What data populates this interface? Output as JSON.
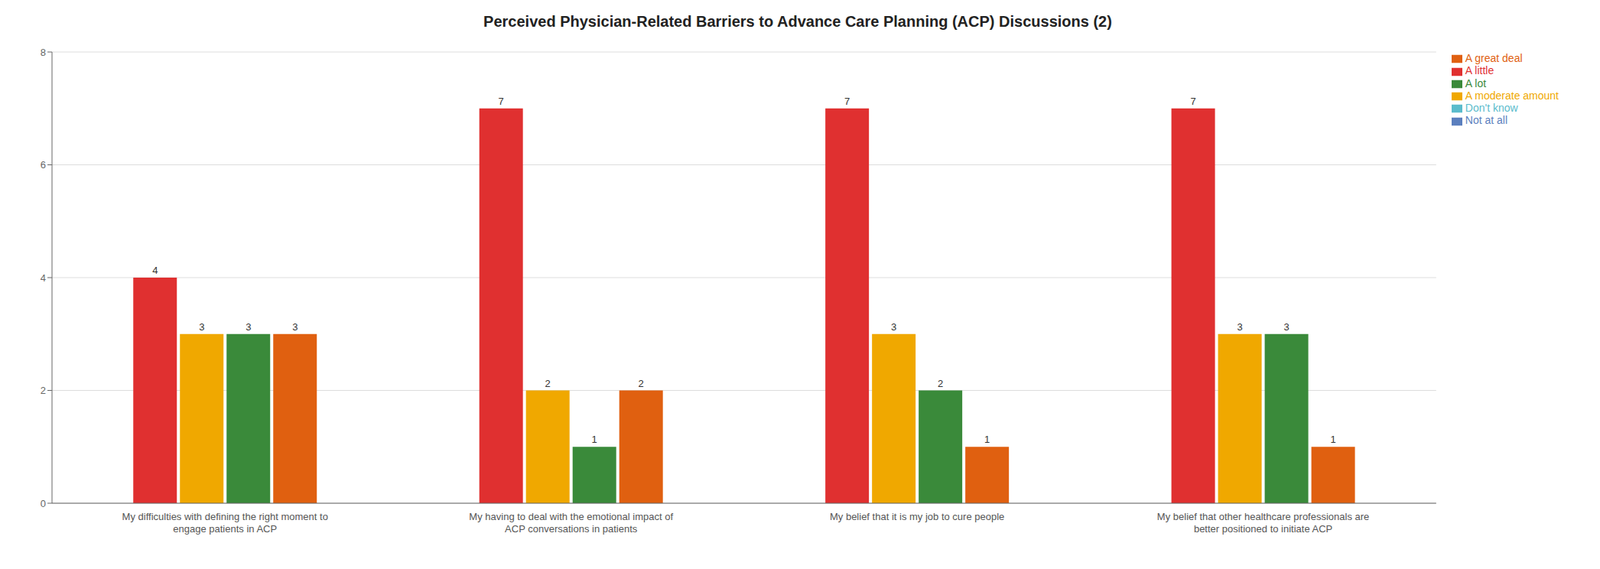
{
  "chart_data": {
    "type": "bar",
    "title": "Perceived Physician-Related Barriers to Advance Care Planning (ACP) Discussions (2)",
    "categories": [
      "My difficulties with defining the right moment to\nengage patients in ACP",
      "My having to deal with the emotional impact of\nACP conversations in patients",
      "My belief that it is my job to cure people",
      "My belief that other healthcare professionals are\nbetter positioned to initiate ACP"
    ],
    "series": [
      {
        "name": "Not at all",
        "color": "#5b7fbe",
        "values": [
          0,
          0,
          0,
          0
        ]
      },
      {
        "name": "A little",
        "color": "#e03030",
        "values": [
          4,
          7,
          7,
          7
        ]
      },
      {
        "name": "A moderate amount",
        "color": "#f0a800",
        "values": [
          3,
          2,
          3,
          3
        ]
      },
      {
        "name": "A lot",
        "color": "#3a8a3a",
        "values": [
          3,
          1,
          2,
          3
        ]
      },
      {
        "name": "A great deal",
        "color": "#e06010",
        "values": [
          3,
          2,
          1,
          1
        ]
      },
      {
        "name": "Don't know",
        "color": "#5bbccc",
        "values": [
          0,
          0,
          0,
          0
        ]
      }
    ],
    "ylim": [
      0,
      8
    ],
    "yticks": [
      0,
      2,
      4,
      6,
      8
    ],
    "grid": true,
    "legend": "right",
    "data_labels": true
  }
}
